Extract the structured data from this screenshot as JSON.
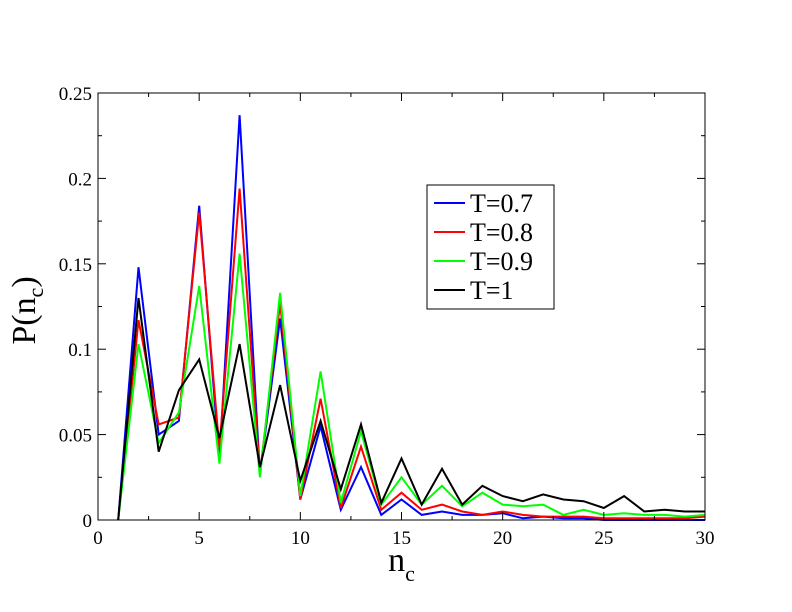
{
  "chart_data": {
    "type": "line",
    "xlabel": {
      "base": "n",
      "sub": "c"
    },
    "ylabel": {
      "base": "P(n",
      "sub": "c",
      "close": ")"
    },
    "xlim": [
      0,
      30
    ],
    "ylim": [
      0,
      0.25
    ],
    "xticks": [
      0,
      5,
      10,
      15,
      20,
      25,
      30
    ],
    "yticks": [
      0,
      0.05,
      0.1,
      0.15,
      0.2,
      0.25
    ],
    "xtick_labels": [
      "0",
      "5",
      "10",
      "15",
      "20",
      "25",
      "30"
    ],
    "ytick_labels": [
      "0",
      "0.05",
      "0.1",
      "0.15",
      "0.2",
      "0.25"
    ],
    "grid": false,
    "legend_position": "upper-center",
    "x": [
      1,
      2,
      3,
      4,
      5,
      6,
      7,
      8,
      9,
      10,
      11,
      12,
      13,
      14,
      15,
      16,
      17,
      18,
      19,
      20,
      21,
      22,
      23,
      24,
      25,
      26,
      27,
      28,
      29,
      30
    ],
    "series": [
      {
        "name": "T=0.7",
        "color": "#0000ff",
        "values": [
          0,
          0.148,
          0.05,
          0.058,
          0.184,
          0.035,
          0.237,
          0.027,
          0.118,
          0.012,
          0.055,
          0.006,
          0.031,
          0.003,
          0.012,
          0.003,
          0.005,
          0.003,
          0.003,
          0.004,
          0.001,
          0.002,
          0.001,
          0.001,
          0.0,
          0.0,
          0.0,
          0.0,
          0.0,
          0.0
        ]
      },
      {
        "name": "T=0.8",
        "color": "#ff0000",
        "values": [
          0,
          0.117,
          0.056,
          0.06,
          0.18,
          0.042,
          0.194,
          0.027,
          0.127,
          0.012,
          0.071,
          0.007,
          0.043,
          0.006,
          0.016,
          0.006,
          0.009,
          0.005,
          0.003,
          0.005,
          0.003,
          0.002,
          0.002,
          0.002,
          0.001,
          0.001,
          0.001,
          0.001,
          0.001,
          0.002
        ]
      },
      {
        "name": "T=0.9",
        "color": "#00ff00",
        "values": [
          0,
          0.103,
          0.045,
          0.063,
          0.137,
          0.033,
          0.156,
          0.025,
          0.133,
          0.014,
          0.087,
          0.01,
          0.052,
          0.009,
          0.025,
          0.009,
          0.02,
          0.008,
          0.016,
          0.009,
          0.008,
          0.009,
          0.003,
          0.006,
          0.003,
          0.004,
          0.003,
          0.003,
          0.002,
          0.003
        ]
      },
      {
        "name": "T=1",
        "color": "#000000",
        "values": [
          0,
          0.13,
          0.04,
          0.076,
          0.094,
          0.048,
          0.103,
          0.031,
          0.079,
          0.023,
          0.058,
          0.018,
          0.056,
          0.01,
          0.036,
          0.009,
          0.03,
          0.009,
          0.02,
          0.014,
          0.011,
          0.015,
          0.012,
          0.011,
          0.007,
          0.014,
          0.005,
          0.006,
          0.005,
          0.005
        ]
      }
    ]
  }
}
